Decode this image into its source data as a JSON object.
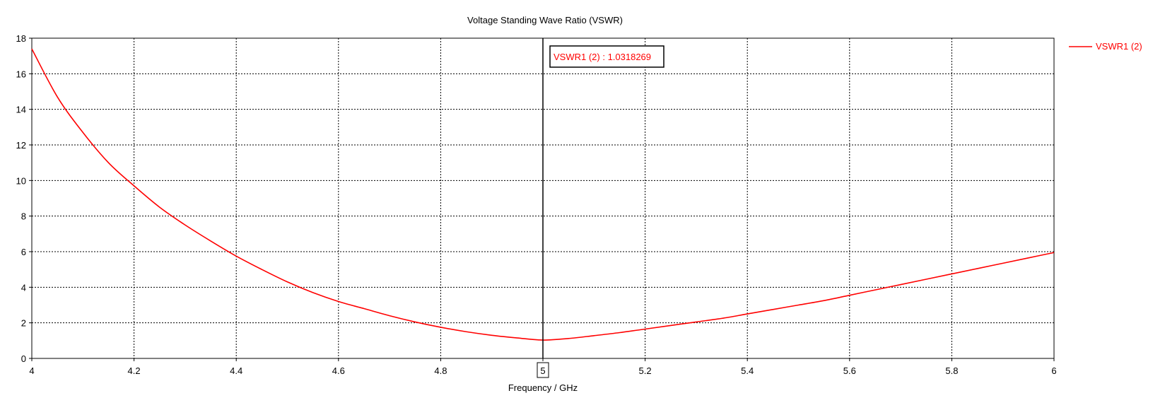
{
  "chart_data": {
    "type": "line",
    "title": "Voltage Standing Wave Ratio (VSWR)",
    "xlabel": "Frequency / GHz",
    "ylabel": "",
    "xlim": [
      4,
      6
    ],
    "ylim": [
      0,
      18
    ],
    "grid": true,
    "legend_position": "top-right",
    "x_ticks": [
      "4",
      "4.2",
      "4.4",
      "4.6",
      "4.8",
      "5",
      "5.2",
      "5.4",
      "5.6",
      "5.8",
      "6"
    ],
    "y_ticks": [
      "0",
      "2",
      "4",
      "6",
      "8",
      "10",
      "12",
      "14",
      "16",
      "18"
    ],
    "series": [
      {
        "name": "VSWR1 (2)",
        "color": "#ff0000",
        "x": [
          4.0,
          4.05,
          4.1,
          4.15,
          4.2,
          4.25,
          4.3,
          4.35,
          4.4,
          4.45,
          4.5,
          4.55,
          4.6,
          4.65,
          4.7,
          4.75,
          4.8,
          4.85,
          4.9,
          4.95,
          5.0,
          5.05,
          5.1,
          5.15,
          5.2,
          5.25,
          5.3,
          5.35,
          5.4,
          5.45,
          5.5,
          5.55,
          5.6,
          5.65,
          5.7,
          5.75,
          5.8,
          5.85,
          5.9,
          5.95,
          6.0
        ],
        "y": [
          17.4,
          14.7,
          12.7,
          11.0,
          9.7,
          8.5,
          7.5,
          6.6,
          5.75,
          5.0,
          4.3,
          3.7,
          3.2,
          2.8,
          2.4,
          2.05,
          1.75,
          1.5,
          1.3,
          1.15,
          1.03,
          1.12,
          1.28,
          1.45,
          1.65,
          1.85,
          2.05,
          2.25,
          2.5,
          2.75,
          3.0,
          3.25,
          3.55,
          3.85,
          4.15,
          4.45,
          4.75,
          5.05,
          5.35,
          5.65,
          5.95
        ]
      }
    ],
    "marker": {
      "x": 5,
      "label": "5",
      "readout": "VSWR1 (2) : 1.0318269"
    }
  }
}
